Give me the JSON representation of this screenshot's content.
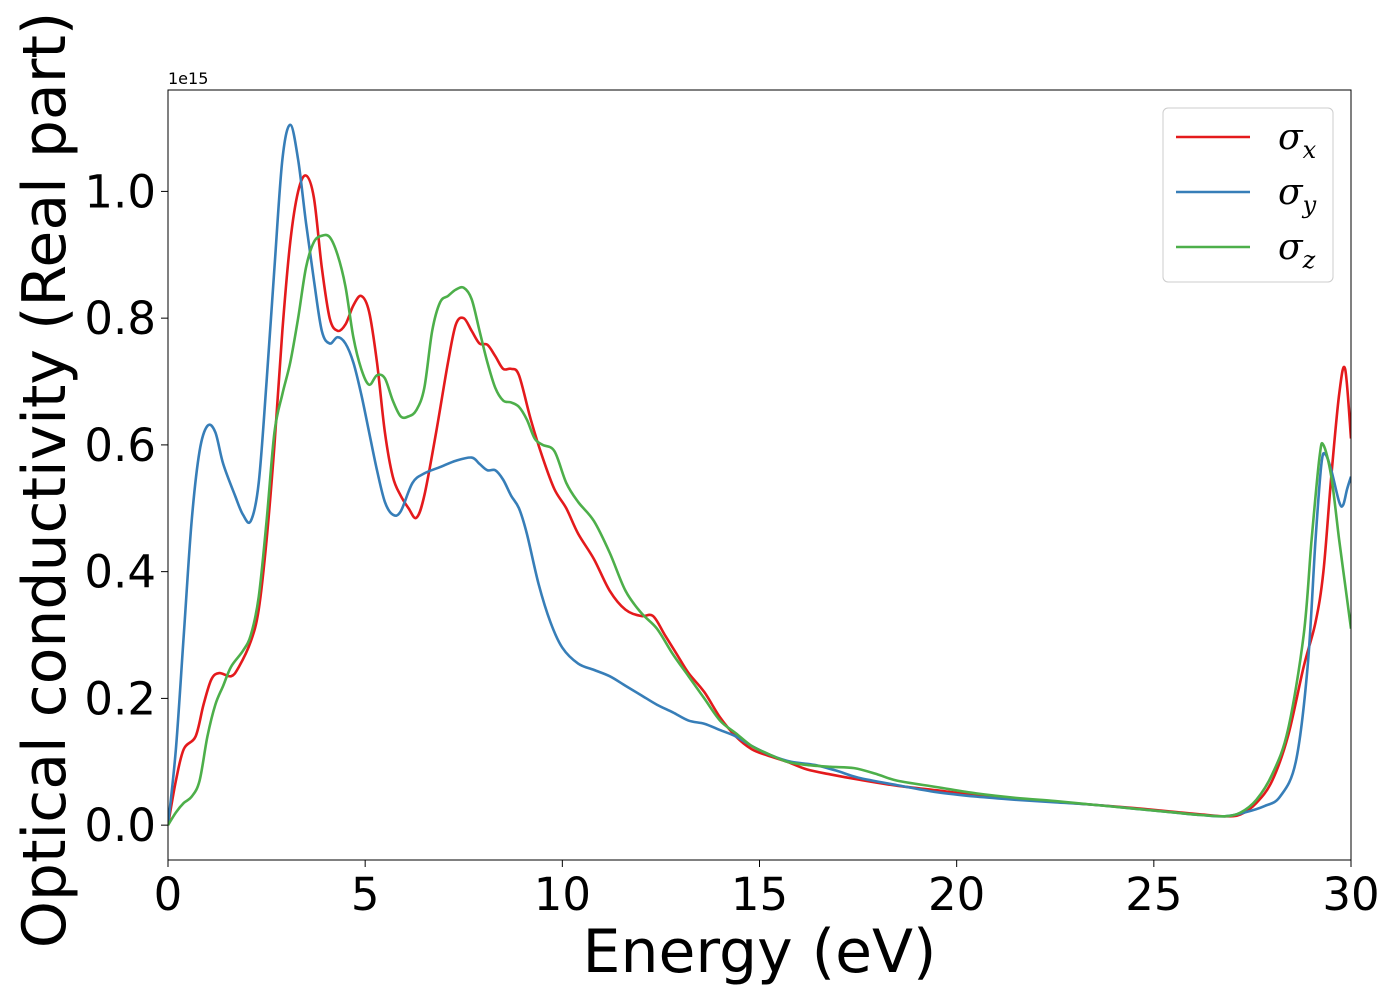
{
  "chart_data": {
    "type": "line",
    "xlabel": "Energy (eV)",
    "ylabel": "Optical conductivity (Real part)",
    "y_offset_label": "1e15",
    "xlim": [
      0,
      30
    ],
    "ylim": [
      -0.055,
      1.16
    ],
    "x_ticks": [
      0,
      5,
      10,
      15,
      20,
      25,
      30
    ],
    "x_tick_labels": [
      "0",
      "5",
      "10",
      "15",
      "20",
      "25",
      "30"
    ],
    "y_ticks": [
      0.0,
      0.2,
      0.4,
      0.6,
      0.8,
      1.0
    ],
    "y_tick_labels": [
      "0.0",
      "0.2",
      "0.4",
      "0.6",
      "0.8",
      "1.0"
    ],
    "grid": false,
    "legend_position": "top-right",
    "series": [
      {
        "name": "σx",
        "symbol": "σ",
        "subscript": "x",
        "color": "#e41a1c",
        "points": [
          [
            0,
            0
          ],
          [
            0.2,
            0.07
          ],
          [
            0.4,
            0.12
          ],
          [
            0.7,
            0.14
          ],
          [
            0.9,
            0.19
          ],
          [
            1.1,
            0.23
          ],
          [
            1.3,
            0.24
          ],
          [
            1.6,
            0.235
          ],
          [
            1.8,
            0.25
          ],
          [
            2.1,
            0.29
          ],
          [
            2.3,
            0.34
          ],
          [
            2.5,
            0.45
          ],
          [
            2.7,
            0.6
          ],
          [
            2.9,
            0.78
          ],
          [
            3.1,
            0.92
          ],
          [
            3.3,
            1.0
          ],
          [
            3.5,
            1.025
          ],
          [
            3.7,
            0.99
          ],
          [
            3.9,
            0.88
          ],
          [
            4.1,
            0.8
          ],
          [
            4.3,
            0.78
          ],
          [
            4.5,
            0.79
          ],
          [
            4.7,
            0.82
          ],
          [
            4.9,
            0.835
          ],
          [
            5.1,
            0.81
          ],
          [
            5.3,
            0.73
          ],
          [
            5.5,
            0.62
          ],
          [
            5.7,
            0.55
          ],
          [
            5.9,
            0.52
          ],
          [
            6.1,
            0.5
          ],
          [
            6.3,
            0.485
          ],
          [
            6.5,
            0.52
          ],
          [
            6.8,
            0.62
          ],
          [
            7.1,
            0.73
          ],
          [
            7.3,
            0.79
          ],
          [
            7.5,
            0.8
          ],
          [
            7.7,
            0.78
          ],
          [
            7.9,
            0.76
          ],
          [
            8.1,
            0.758
          ],
          [
            8.3,
            0.74
          ],
          [
            8.5,
            0.72
          ],
          [
            8.7,
            0.72
          ],
          [
            8.9,
            0.71
          ],
          [
            9.2,
            0.64
          ],
          [
            9.5,
            0.58
          ],
          [
            9.8,
            0.53
          ],
          [
            10.1,
            0.5
          ],
          [
            10.4,
            0.46
          ],
          [
            10.8,
            0.42
          ],
          [
            11.2,
            0.37
          ],
          [
            11.6,
            0.34
          ],
          [
            12.0,
            0.33
          ],
          [
            12.3,
            0.33
          ],
          [
            12.6,
            0.3
          ],
          [
            12.9,
            0.27
          ],
          [
            13.2,
            0.24
          ],
          [
            13.6,
            0.21
          ],
          [
            14.0,
            0.17
          ],
          [
            14.4,
            0.14
          ],
          [
            14.8,
            0.12
          ],
          [
            15.2,
            0.11
          ],
          [
            15.7,
            0.1
          ],
          [
            16.2,
            0.088
          ],
          [
            16.8,
            0.08
          ],
          [
            17.5,
            0.072
          ],
          [
            18.5,
            0.062
          ],
          [
            19.5,
            0.055
          ],
          [
            20.5,
            0.047
          ],
          [
            21.5,
            0.042
          ],
          [
            22.5,
            0.037
          ],
          [
            23.5,
            0.032
          ],
          [
            24.5,
            0.027
          ],
          [
            25.5,
            0.021
          ],
          [
            26.2,
            0.017
          ],
          [
            26.8,
            0.014
          ],
          [
            27.2,
            0.017
          ],
          [
            27.6,
            0.035
          ],
          [
            28.0,
            0.07
          ],
          [
            28.4,
            0.14
          ],
          [
            28.8,
            0.25
          ],
          [
            29.1,
            0.32
          ],
          [
            29.3,
            0.4
          ],
          [
            29.5,
            0.55
          ],
          [
            29.7,
            0.68
          ],
          [
            29.85,
            0.72
          ],
          [
            30.0,
            0.61
          ]
        ]
      },
      {
        "name": "σy",
        "symbol": "σ",
        "subscript": "y",
        "color": "#377eb8",
        "points": [
          [
            0,
            0
          ],
          [
            0.2,
            0.12
          ],
          [
            0.4,
            0.3
          ],
          [
            0.6,
            0.48
          ],
          [
            0.8,
            0.59
          ],
          [
            1.0,
            0.63
          ],
          [
            1.2,
            0.62
          ],
          [
            1.4,
            0.57
          ],
          [
            1.7,
            0.52
          ],
          [
            1.9,
            0.49
          ],
          [
            2.1,
            0.48
          ],
          [
            2.3,
            0.54
          ],
          [
            2.5,
            0.7
          ],
          [
            2.7,
            0.88
          ],
          [
            2.9,
            1.05
          ],
          [
            3.1,
            1.105
          ],
          [
            3.3,
            1.05
          ],
          [
            3.5,
            0.95
          ],
          [
            3.7,
            0.86
          ],
          [
            3.9,
            0.78
          ],
          [
            4.1,
            0.76
          ],
          [
            4.3,
            0.77
          ],
          [
            4.5,
            0.76
          ],
          [
            4.7,
            0.73
          ],
          [
            4.9,
            0.68
          ],
          [
            5.1,
            0.62
          ],
          [
            5.3,
            0.56
          ],
          [
            5.5,
            0.51
          ],
          [
            5.7,
            0.49
          ],
          [
            5.9,
            0.495
          ],
          [
            6.2,
            0.54
          ],
          [
            6.5,
            0.555
          ],
          [
            6.9,
            0.565
          ],
          [
            7.3,
            0.575
          ],
          [
            7.7,
            0.58
          ],
          [
            7.9,
            0.57
          ],
          [
            8.1,
            0.56
          ],
          [
            8.3,
            0.56
          ],
          [
            8.5,
            0.545
          ],
          [
            8.7,
            0.52
          ],
          [
            8.9,
            0.5
          ],
          [
            9.1,
            0.46
          ],
          [
            9.4,
            0.38
          ],
          [
            9.7,
            0.32
          ],
          [
            10.0,
            0.28
          ],
          [
            10.4,
            0.255
          ],
          [
            10.8,
            0.245
          ],
          [
            11.2,
            0.235
          ],
          [
            11.6,
            0.22
          ],
          [
            12.0,
            0.205
          ],
          [
            12.4,
            0.19
          ],
          [
            12.8,
            0.178
          ],
          [
            13.2,
            0.165
          ],
          [
            13.6,
            0.16
          ],
          [
            14.0,
            0.15
          ],
          [
            14.4,
            0.14
          ],
          [
            14.8,
            0.125
          ],
          [
            15.3,
            0.11
          ],
          [
            15.8,
            0.1
          ],
          [
            16.4,
            0.095
          ],
          [
            17.0,
            0.085
          ],
          [
            17.5,
            0.075
          ],
          [
            18.5,
            0.063
          ],
          [
            19.5,
            0.052
          ],
          [
            20.5,
            0.045
          ],
          [
            21.5,
            0.04
          ],
          [
            22.5,
            0.036
          ],
          [
            23.5,
            0.032
          ],
          [
            24.5,
            0.026
          ],
          [
            25.5,
            0.02
          ],
          [
            26.2,
            0.016
          ],
          [
            26.8,
            0.014
          ],
          [
            27.3,
            0.02
          ],
          [
            27.8,
            0.03
          ],
          [
            28.2,
            0.045
          ],
          [
            28.6,
            0.1
          ],
          [
            28.9,
            0.25
          ],
          [
            29.1,
            0.45
          ],
          [
            29.25,
            0.57
          ],
          [
            29.35,
            0.585
          ],
          [
            29.5,
            0.56
          ],
          [
            29.7,
            0.51
          ],
          [
            29.8,
            0.505
          ],
          [
            29.9,
            0.53
          ],
          [
            30.0,
            0.55
          ]
        ]
      },
      {
        "name": "σz",
        "symbol": "σ",
        "subscript": "z",
        "color": "#4daf4a",
        "points": [
          [
            0,
            0
          ],
          [
            0.2,
            0.02
          ],
          [
            0.4,
            0.035
          ],
          [
            0.6,
            0.045
          ],
          [
            0.8,
            0.07
          ],
          [
            1.0,
            0.14
          ],
          [
            1.2,
            0.19
          ],
          [
            1.4,
            0.22
          ],
          [
            1.6,
            0.25
          ],
          [
            1.9,
            0.275
          ],
          [
            2.1,
            0.3
          ],
          [
            2.3,
            0.36
          ],
          [
            2.5,
            0.48
          ],
          [
            2.7,
            0.62
          ],
          [
            2.9,
            0.68
          ],
          [
            3.1,
            0.73
          ],
          [
            3.3,
            0.8
          ],
          [
            3.5,
            0.88
          ],
          [
            3.7,
            0.92
          ],
          [
            3.9,
            0.93
          ],
          [
            4.1,
            0.928
          ],
          [
            4.3,
            0.9
          ],
          [
            4.5,
            0.85
          ],
          [
            4.7,
            0.77
          ],
          [
            4.9,
            0.72
          ],
          [
            5.1,
            0.695
          ],
          [
            5.3,
            0.71
          ],
          [
            5.5,
            0.705
          ],
          [
            5.7,
            0.67
          ],
          [
            5.9,
            0.645
          ],
          [
            6.1,
            0.645
          ],
          [
            6.3,
            0.655
          ],
          [
            6.5,
            0.69
          ],
          [
            6.7,
            0.78
          ],
          [
            6.9,
            0.825
          ],
          [
            7.1,
            0.835
          ],
          [
            7.3,
            0.845
          ],
          [
            7.5,
            0.848
          ],
          [
            7.7,
            0.83
          ],
          [
            7.9,
            0.78
          ],
          [
            8.1,
            0.73
          ],
          [
            8.3,
            0.69
          ],
          [
            8.5,
            0.67
          ],
          [
            8.7,
            0.667
          ],
          [
            8.9,
            0.66
          ],
          [
            9.1,
            0.64
          ],
          [
            9.3,
            0.61
          ],
          [
            9.5,
            0.6
          ],
          [
            9.8,
            0.59
          ],
          [
            10.1,
            0.54
          ],
          [
            10.4,
            0.51
          ],
          [
            10.8,
            0.48
          ],
          [
            11.2,
            0.43
          ],
          [
            11.6,
            0.37
          ],
          [
            12.0,
            0.335
          ],
          [
            12.4,
            0.31
          ],
          [
            12.8,
            0.27
          ],
          [
            13.2,
            0.235
          ],
          [
            13.6,
            0.2
          ],
          [
            14.0,
            0.165
          ],
          [
            14.4,
            0.145
          ],
          [
            14.8,
            0.125
          ],
          [
            15.2,
            0.113
          ],
          [
            15.7,
            0.1
          ],
          [
            16.2,
            0.095
          ],
          [
            16.8,
            0.092
          ],
          [
            17.4,
            0.09
          ],
          [
            18.0,
            0.08
          ],
          [
            18.5,
            0.07
          ],
          [
            19.5,
            0.06
          ],
          [
            20.5,
            0.05
          ],
          [
            21.5,
            0.043
          ],
          [
            22.5,
            0.038
          ],
          [
            23.5,
            0.032
          ],
          [
            24.5,
            0.026
          ],
          [
            25.5,
            0.02
          ],
          [
            26.2,
            0.016
          ],
          [
            26.8,
            0.014
          ],
          [
            27.2,
            0.02
          ],
          [
            27.6,
            0.04
          ],
          [
            28.0,
            0.08
          ],
          [
            28.4,
            0.15
          ],
          [
            28.8,
            0.3
          ],
          [
            29.0,
            0.45
          ],
          [
            29.2,
            0.58
          ],
          [
            29.3,
            0.6
          ],
          [
            29.5,
            0.55
          ],
          [
            29.7,
            0.45
          ],
          [
            29.85,
            0.38
          ],
          [
            30.0,
            0.31
          ]
        ]
      }
    ]
  }
}
